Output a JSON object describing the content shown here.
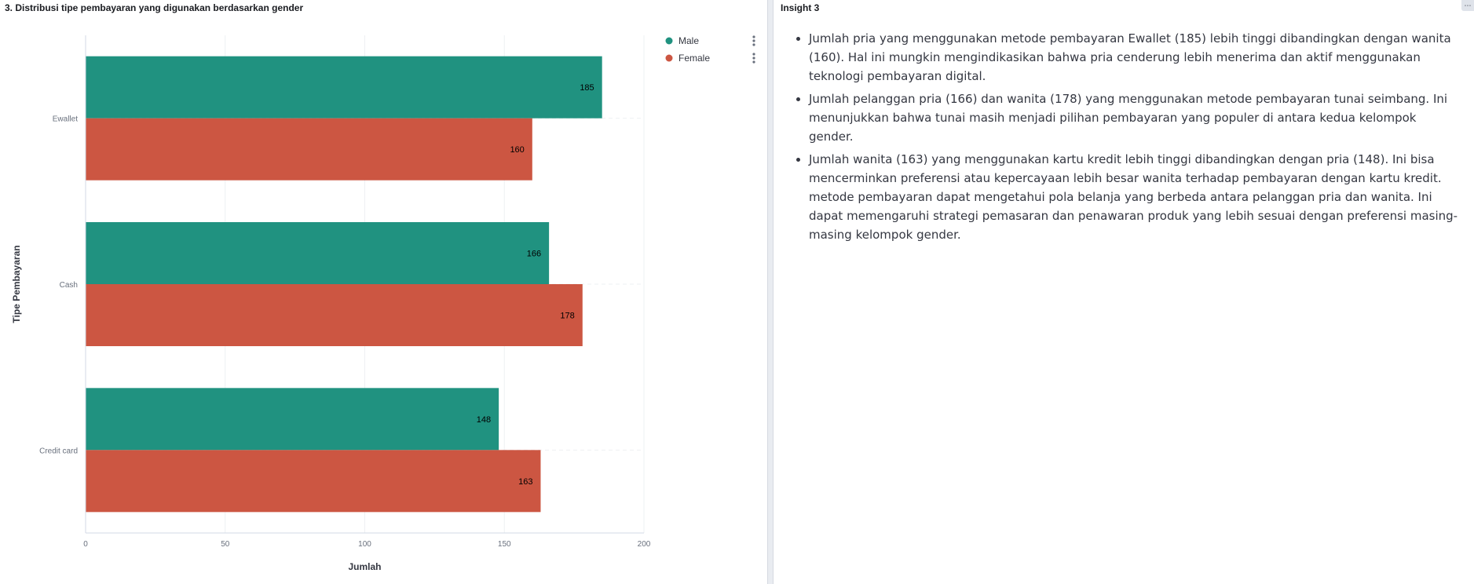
{
  "chart_panel": {
    "title": "3. Distribusi tipe pembayaran yang digunakan berdasarkan gender"
  },
  "insight_panel": {
    "title": "Insight 3",
    "bullets": [
      "Jumlah pria yang menggunakan metode pembayaran Ewallet (185) lebih tinggi dibandingkan dengan wanita (160). Hal ini mungkin mengindikasikan bahwa pria cenderung lebih menerima dan aktif menggunakan teknologi pembayaran digital.",
      "Jumlah pelanggan pria (166) dan wanita (178) yang menggunakan metode pembayaran tunai seimbang. Ini menunjukkan bahwa tunai masih menjadi pilihan pembayaran yang populer di antara kedua kelompok gender.",
      "Jumlah wanita (163) yang menggunakan kartu kredit lebih tinggi dibandingkan dengan pria (148). Ini bisa mencerminkan preferensi atau kepercayaan lebih besar wanita terhadap pembayaran dengan kartu kredit. metode pembayaran dapat mengetahui pola belanja yang berbeda antara pelanggan pria dan wanita. Ini dapat memengaruhi strategi pemasaran dan penawaran produk yang lebih sesuai dengan preferensi masing-masing kelompok gender."
    ]
  },
  "colors": {
    "male": "#209280",
    "female": "#cc5642",
    "grid": "#eef0f3",
    "axis": "#d3dae6"
  },
  "chart_data": {
    "type": "bar",
    "orientation": "horizontal",
    "title": "3. Distribusi tipe pembayaran yang digunakan berdasarkan gender",
    "xlabel": "Jumlah",
    "ylabel": "Tipe Pembayaran",
    "categories": [
      "Ewallet",
      "Cash",
      "Credit card"
    ],
    "series": [
      {
        "name": "Male",
        "values": [
          185,
          166,
          148
        ]
      },
      {
        "name": "Female",
        "values": [
          160,
          178,
          163
        ]
      }
    ],
    "xlim": [
      0,
      200
    ],
    "xticks": [
      0,
      50,
      100,
      150,
      200
    ],
    "grid": true,
    "legend_position": "top-right"
  }
}
